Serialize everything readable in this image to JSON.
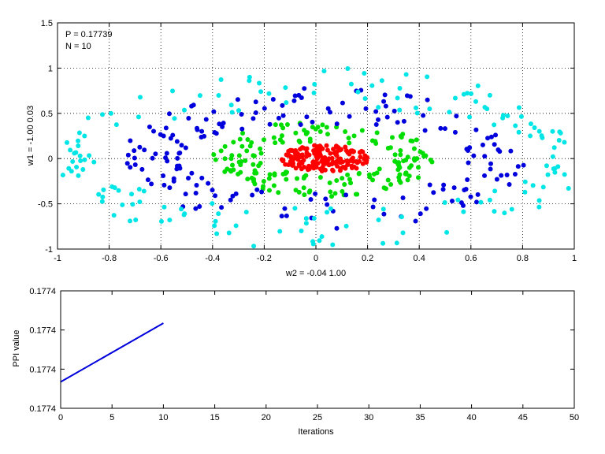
{
  "chart_data": [
    {
      "type": "scatter",
      "annotations": [
        "P = 0.17739",
        "N = 10"
      ],
      "xlabel": "w2 = -0.04  1.00",
      "ylabel": "w1 = -1.00  0.03",
      "xlim": [
        -1,
        1
      ],
      "ylim": [
        -1,
        1.5
      ],
      "xticks": [
        "-1",
        "-0.8",
        "-0.6",
        "-0.4",
        "-0.2",
        "0",
        "0.2",
        "0.4",
        "0.6",
        "0.8",
        "1"
      ],
      "yticks": [
        "-1",
        "-0.5",
        "0",
        "0.5",
        "1",
        "1.5"
      ],
      "grid": true,
      "series": [
        {
          "color": "#ff0000",
          "shape": "filled ellipse",
          "center": [
            0.04,
            0.0
          ],
          "radius_x": [
            0.0,
            0.18
          ],
          "radius_y": [
            0.0,
            0.15
          ],
          "count": 180
        },
        {
          "color": "#00dd00",
          "shape": "elliptical ring",
          "center": [
            0.04,
            0.0
          ],
          "radius_x": [
            0.26,
            0.44
          ],
          "radius_y": [
            0.18,
            0.42
          ],
          "count": 180
        },
        {
          "color": "#0000dd",
          "shape": "elliptical ring",
          "center": [
            0.03,
            0.0
          ],
          "radius_x": [
            0.56,
            0.78
          ],
          "radius_y": [
            0.38,
            0.78
          ],
          "count": 180
        },
        {
          "color": "#00e6e6",
          "shape": "elliptical ring",
          "center": [
            0.02,
            0.0
          ],
          "radius_x": [
            0.88,
            1.03
          ],
          "radius_y": [
            0.55,
            1.0
          ],
          "count": 170
        }
      ]
    },
    {
      "type": "line",
      "xlabel": "Iterations",
      "ylabel": "PPI value",
      "xlim": [
        0,
        50
      ],
      "xticks": [
        "0",
        "5",
        "10",
        "15",
        "20",
        "25",
        "30",
        "35",
        "40",
        "45",
        "50"
      ],
      "yticks": [
        "0.1774",
        "0.1774",
        "0.1774",
        "0.1774"
      ],
      "ylim": [
        0.17737,
        0.17741
      ],
      "grid": false,
      "series": [
        {
          "color": "#0000dd",
          "x": [
            0,
            10
          ],
          "y": [
            0.177379,
            0.177399
          ]
        }
      ]
    }
  ]
}
